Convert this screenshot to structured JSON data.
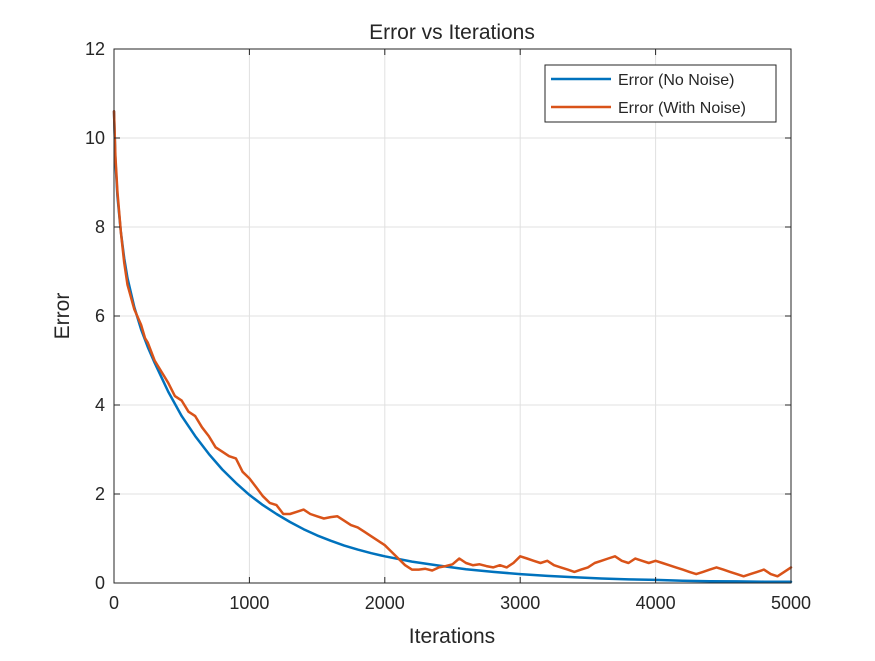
{
  "chart_data": {
    "type": "line",
    "title": "Error vs Iterations",
    "xlabel": "Iterations",
    "ylabel": "Error",
    "xlim": [
      0,
      5000
    ],
    "ylim": [
      0,
      12
    ],
    "xticks": [
      0,
      1000,
      2000,
      3000,
      4000,
      5000
    ],
    "yticks": [
      0,
      2,
      4,
      6,
      8,
      10,
      12
    ],
    "xtick_labels": [
      "0",
      "1000",
      "2000",
      "3000",
      "4000",
      "5000"
    ],
    "ytick_labels": [
      "0",
      "2",
      "4",
      "6",
      "8",
      "10",
      "12"
    ],
    "grid": true,
    "legend_position": "top-right",
    "series": [
      {
        "name": "Error (No Noise)",
        "color": "#0072BD",
        "x": [
          0,
          10,
          25,
          50,
          75,
          100,
          150,
          200,
          250,
          300,
          400,
          500,
          600,
          700,
          800,
          900,
          1000,
          1100,
          1200,
          1300,
          1400,
          1500,
          1600,
          1700,
          1800,
          1900,
          2000,
          2200,
          2400,
          2600,
          2800,
          3000,
          3200,
          3400,
          3600,
          3800,
          4000,
          4200,
          4400,
          4600,
          4800,
          5000
        ],
        "y": [
          10.6,
          9.5,
          8.7,
          7.9,
          7.3,
          6.85,
          6.2,
          5.7,
          5.3,
          4.95,
          4.3,
          3.75,
          3.3,
          2.9,
          2.55,
          2.25,
          1.98,
          1.75,
          1.55,
          1.37,
          1.21,
          1.07,
          0.95,
          0.84,
          0.75,
          0.67,
          0.6,
          0.48,
          0.39,
          0.31,
          0.25,
          0.2,
          0.16,
          0.13,
          0.1,
          0.08,
          0.07,
          0.05,
          0.04,
          0.035,
          0.03,
          0.03
        ]
      },
      {
        "name": "Error (With Noise)",
        "color": "#D95319",
        "x": [
          0,
          10,
          25,
          50,
          75,
          100,
          150,
          200,
          230,
          250,
          300,
          400,
          450,
          500,
          550,
          600,
          650,
          700,
          750,
          800,
          850,
          900,
          950,
          1000,
          1050,
          1100,
          1150,
          1200,
          1250,
          1300,
          1350,
          1400,
          1450,
          1500,
          1550,
          1600,
          1650,
          1700,
          1750,
          1800,
          1850,
          1900,
          1950,
          2000,
          2050,
          2100,
          2150,
          2200,
          2250,
          2300,
          2350,
          2400,
          2450,
          2500,
          2550,
          2600,
          2650,
          2700,
          2750,
          2800,
          2850,
          2900,
          2950,
          3000,
          3050,
          3100,
          3150,
          3200,
          3250,
          3300,
          3350,
          3400,
          3450,
          3500,
          3550,
          3600,
          3650,
          3700,
          3750,
          3800,
          3850,
          3900,
          3950,
          4000,
          4050,
          4100,
          4150,
          4200,
          4250,
          4300,
          4350,
          4400,
          4450,
          4500,
          4550,
          4600,
          4650,
          4700,
          4750,
          4800,
          4850,
          4900,
          4950,
          5000
        ],
        "y": [
          10.6,
          9.6,
          8.8,
          7.9,
          7.2,
          6.7,
          6.15,
          5.8,
          5.5,
          5.4,
          5.0,
          4.5,
          4.2,
          4.1,
          3.85,
          3.75,
          3.5,
          3.3,
          3.05,
          2.95,
          2.85,
          2.8,
          2.5,
          2.35,
          2.15,
          1.95,
          1.8,
          1.75,
          1.55,
          1.55,
          1.6,
          1.65,
          1.55,
          1.5,
          1.45,
          1.48,
          1.5,
          1.4,
          1.3,
          1.25,
          1.15,
          1.05,
          0.95,
          0.85,
          0.7,
          0.55,
          0.4,
          0.3,
          0.3,
          0.32,
          0.28,
          0.35,
          0.38,
          0.42,
          0.55,
          0.45,
          0.4,
          0.42,
          0.38,
          0.35,
          0.4,
          0.35,
          0.45,
          0.6,
          0.55,
          0.5,
          0.45,
          0.5,
          0.4,
          0.35,
          0.3,
          0.25,
          0.3,
          0.35,
          0.45,
          0.5,
          0.55,
          0.6,
          0.5,
          0.45,
          0.55,
          0.5,
          0.45,
          0.5,
          0.45,
          0.4,
          0.35,
          0.3,
          0.25,
          0.2,
          0.25,
          0.3,
          0.35,
          0.3,
          0.25,
          0.2,
          0.15,
          0.2,
          0.25,
          0.3,
          0.2,
          0.15,
          0.25,
          0.35
        ]
      }
    ]
  }
}
